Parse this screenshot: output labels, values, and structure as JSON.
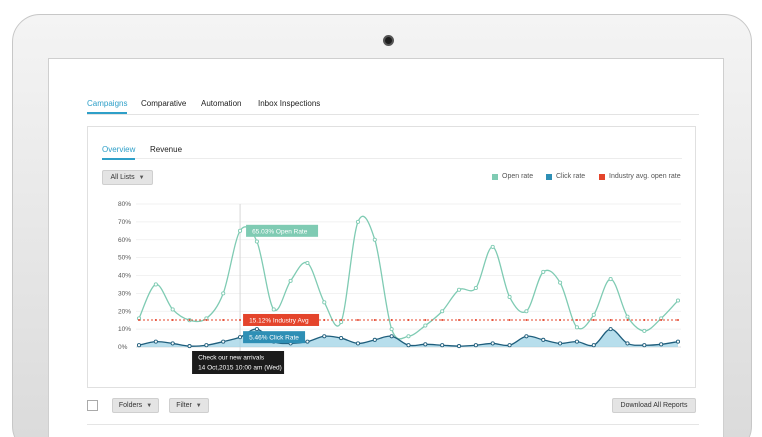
{
  "main_tabs": [
    "Campaigns",
    "Comparative",
    "Automation",
    "Inbox Inspections"
  ],
  "sub_tabs": [
    "Overview",
    "Revenue"
  ],
  "list_filter": "All Lists",
  "legend": [
    {
      "label": "Open rate",
      "color": "#7fcbb3"
    },
    {
      "label": "Click rate",
      "color": "#2e8fb5"
    },
    {
      "label": "Industry avg. open rate",
      "color": "#e4442b"
    }
  ],
  "colors": {
    "accent": "#2e9fc8",
    "open": "#7fcbb3",
    "click": "#2e8fb5",
    "industry": "#e4442b"
  },
  "tooltips": {
    "open": "65.03% Open Rate",
    "industry": "15.12% Industry Avg",
    "click": "5.46% Click Rate",
    "promo_line1": "Check our new arrivals",
    "promo_line2": "14 Oct,2015 10:00 am (Wed)"
  },
  "footer": {
    "folders": "Folders",
    "filter": "Filter",
    "download": "Download All Reports"
  },
  "chart_data": {
    "type": "line",
    "y_ticks": [
      "0%",
      "10%",
      "20%",
      "30%",
      "40%",
      "50%",
      "60%",
      "70%",
      "80%"
    ],
    "ylim": [
      0,
      80
    ],
    "x": [
      1,
      2,
      3,
      4,
      5,
      6,
      7,
      8,
      9,
      10,
      11,
      12,
      13,
      14,
      15,
      16,
      17,
      18,
      19,
      20,
      21,
      22,
      23,
      24,
      25,
      26,
      27,
      28,
      29,
      30,
      31,
      32,
      33
    ],
    "series": [
      {
        "name": "Open rate",
        "values": [
          16,
          35,
          21,
          15,
          16,
          30,
          65,
          59,
          21,
          37,
          47,
          25,
          14,
          70,
          60,
          10,
          6,
          12,
          20,
          32,
          33,
          56,
          28,
          20,
          42,
          36,
          11,
          18,
          38,
          17,
          9,
          16,
          26
        ]
      },
      {
        "name": "Click rate",
        "values": [
          1,
          3,
          2,
          0.5,
          1,
          3,
          5.5,
          10,
          3,
          2,
          3,
          6,
          5,
          2,
          4,
          6,
          1,
          1.5,
          1,
          0.5,
          1,
          2,
          1,
          6,
          4,
          2,
          3,
          1,
          10,
          2,
          1,
          1.5,
          3
        ]
      },
      {
        "name": "Industry avg. open rate",
        "values": [
          15.12,
          15.12,
          15.12,
          15.12,
          15.12,
          15.12,
          15.12,
          15.12,
          15.12,
          15.12,
          15.12,
          15.12,
          15.12,
          15.12,
          15.12,
          15.12,
          15.12,
          15.12,
          15.12,
          15.12,
          15.12,
          15.12,
          15.12,
          15.12,
          15.12,
          15.12,
          15.12,
          15.12,
          15.12,
          15.12,
          15.12,
          15.12,
          15.12
        ]
      }
    ],
    "grid": true,
    "legend_position": "top-right"
  }
}
